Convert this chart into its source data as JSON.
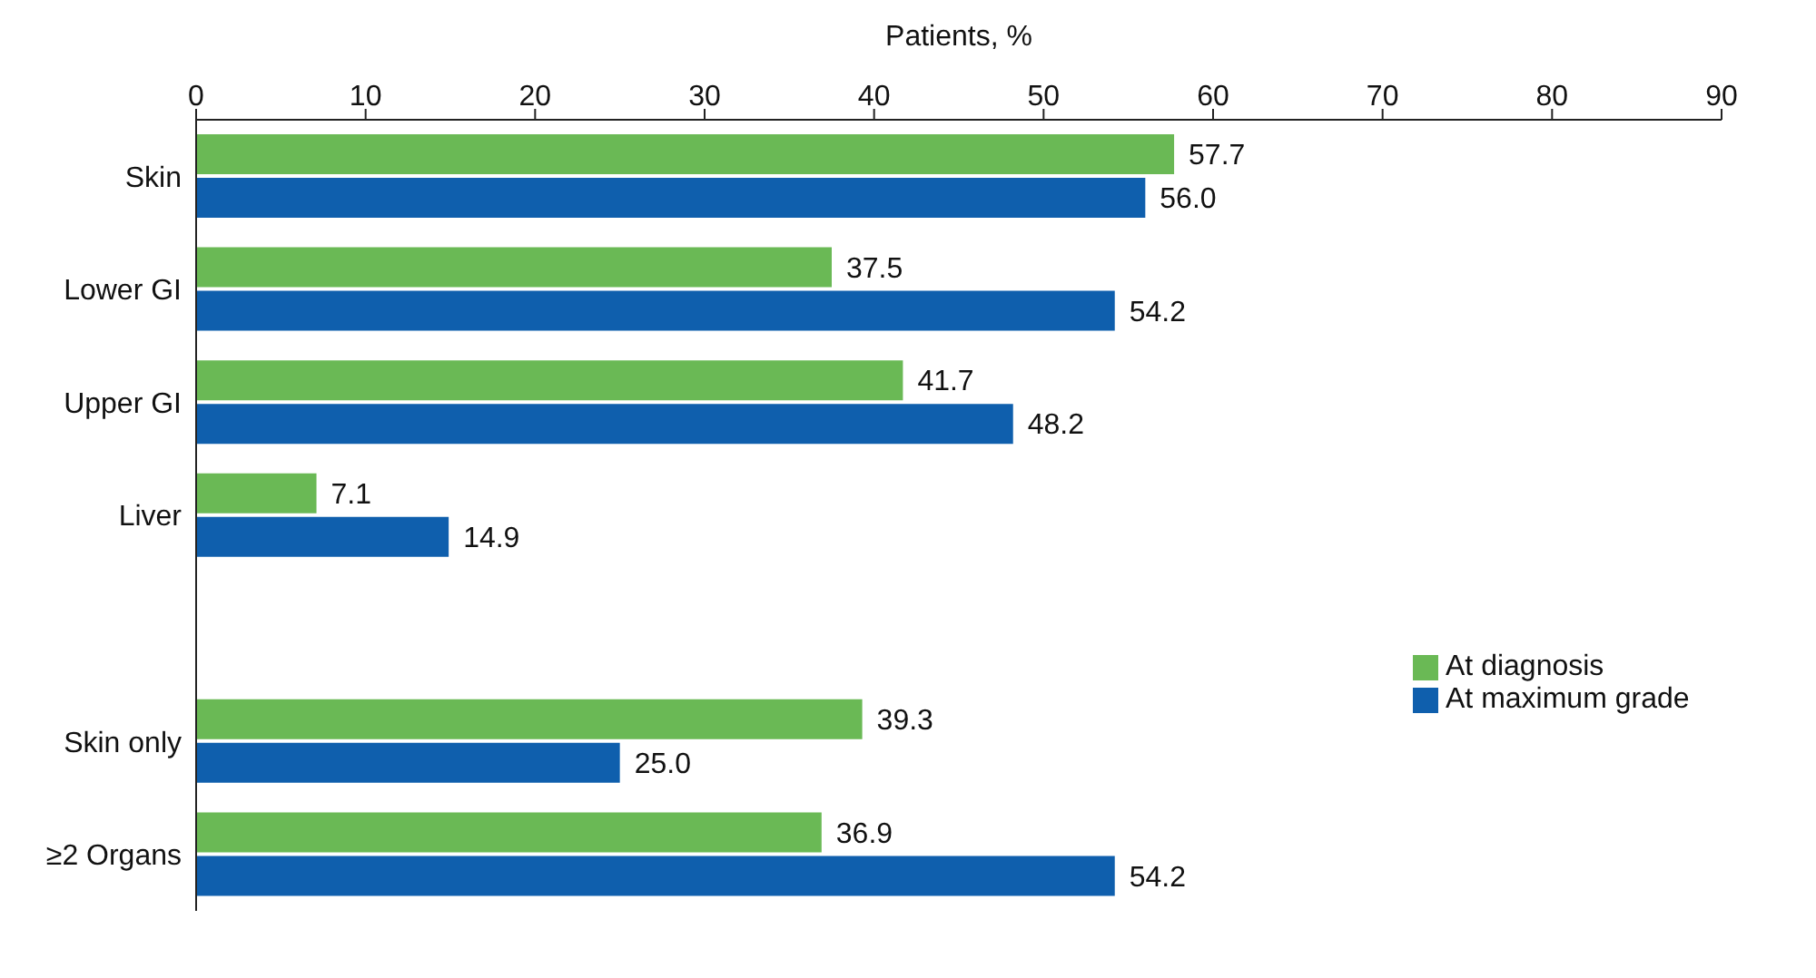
{
  "chart_data": {
    "type": "bar",
    "orientation": "horizontal",
    "xlabel": "Patients, %",
    "categories": [
      "Skin",
      "Lower GI",
      "Upper GI",
      "Liver",
      null,
      "Skin only",
      "≥2 Organs"
    ],
    "series": [
      {
        "name": "At diagnosis",
        "color": "#6ab955",
        "values": [
          57.7,
          37.5,
          41.7,
          7.1,
          null,
          39.3,
          36.9
        ],
        "value_labels": [
          "57.7",
          "37.5",
          "41.7",
          "7.1",
          null,
          "39.3",
          "36.9"
        ]
      },
      {
        "name": "At maximum grade",
        "color": "#0f5fad",
        "values": [
          56.0,
          54.2,
          48.2,
          14.9,
          null,
          25.0,
          54.2
        ],
        "value_labels": [
          "56.0",
          "54.2",
          "48.2",
          "14.9",
          null,
          "25.0",
          "54.2"
        ]
      }
    ],
    "xlim": [
      0,
      90
    ],
    "xticks": [
      0,
      10,
      20,
      30,
      40,
      50,
      60,
      70,
      80,
      90
    ],
    "grid": false,
    "legend": "right"
  }
}
